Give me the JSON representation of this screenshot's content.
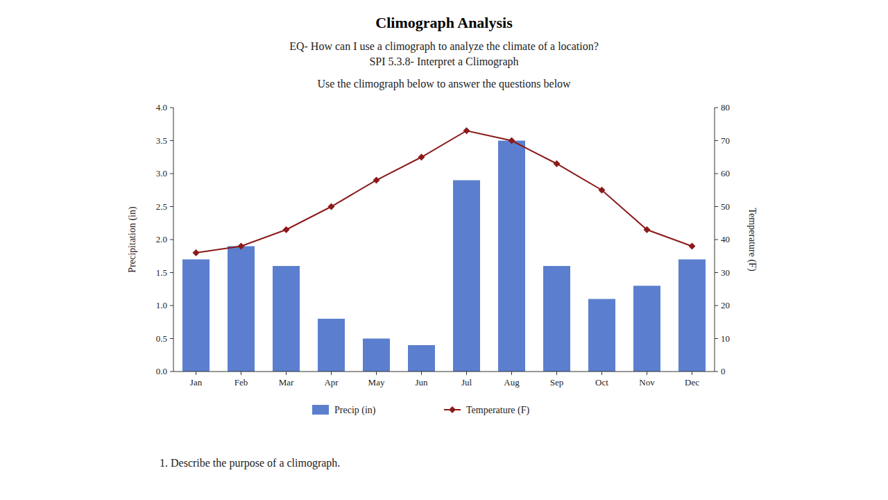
{
  "chart_data": {
    "type": "bar",
    "title": "Climograph Analysis",
    "subtitle": [
      "EQ- How can I use a climograph to analyze the climate of a location?",
      "SPI 5.3.8- Interpret a Climograph"
    ],
    "annotations": [
      "Use the climograph below to answer the questions below",
      "1. Describe the purpose of a climograph."
    ],
    "categories": [
      "Jan",
      "Feb",
      "Mar",
      "Apr",
      "May",
      "Jun",
      "Jul",
      "Aug",
      "Sep",
      "Oct",
      "Nov",
      "Dec"
    ],
    "series": [
      {
        "name": "Precip (in)",
        "type": "bar",
        "color": "#5b7fce",
        "values": [
          1.7,
          1.9,
          1.6,
          0.8,
          0.5,
          0.4,
          2.9,
          3.5,
          1.6,
          1.1,
          1.3,
          1.7
        ]
      },
      {
        "name": "Temperature (F)",
        "type": "line",
        "color": "#8b1a1a",
        "marker": "diamond",
        "axis": "y2",
        "values": [
          36,
          38,
          43,
          50,
          58,
          65,
          73,
          70,
          63,
          55,
          43,
          38
        ]
      }
    ],
    "ylabel": "Precipitation (in)",
    "y2label": "Temperature (F)",
    "ylim": [
      0,
      4
    ],
    "yticks": [
      {
        "value": 0,
        "label": "0.0"
      },
      0.5,
      {
        "value": 1,
        "label": "1.0"
      },
      1.5,
      {
        "value": 2,
        "label": "2.0"
      },
      2.5,
      {
        "value": 3,
        "label": "3.0"
      },
      3.5,
      {
        "value": 4,
        "label": "4.0"
      }
    ],
    "y2lim": [
      0,
      80
    ],
    "y2ticks": [
      0,
      10,
      20,
      30,
      40,
      50,
      60,
      70,
      80
    ],
    "legend": "bottom",
    "grid": false
  }
}
